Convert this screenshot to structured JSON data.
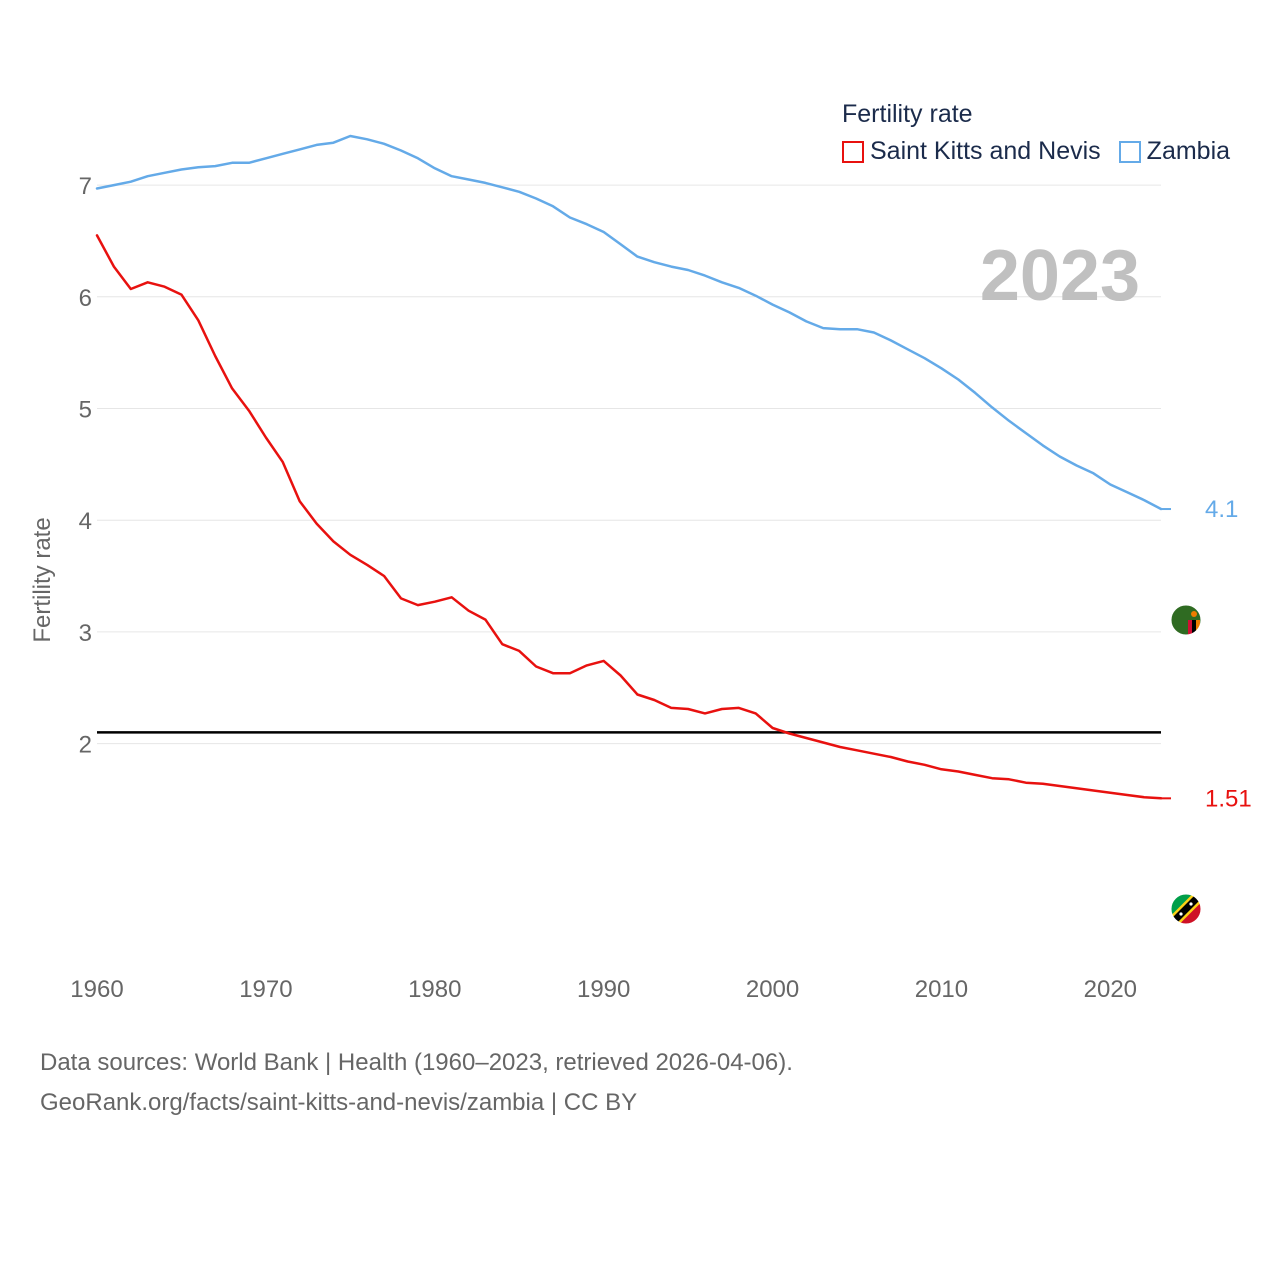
{
  "chart_data": {
    "type": "line",
    "title": "Fertility rate",
    "year_label": "2023",
    "xlabel": "",
    "ylabel": "Fertility rate",
    "xlim": [
      1960,
      2023
    ],
    "ylim": [
      1.0,
      8.0
    ],
    "x_ticks": [
      1960,
      1970,
      1980,
      1990,
      2000,
      2010,
      2020
    ],
    "y_ticks": [
      2,
      3,
      4,
      5,
      6,
      7
    ],
    "reference_line": {
      "y": 2.1,
      "color": "#000000"
    },
    "x": [
      1960,
      1961,
      1962,
      1963,
      1964,
      1965,
      1966,
      1967,
      1968,
      1969,
      1970,
      1971,
      1972,
      1973,
      1974,
      1975,
      1976,
      1977,
      1978,
      1979,
      1980,
      1981,
      1982,
      1983,
      1984,
      1985,
      1986,
      1987,
      1988,
      1989,
      1990,
      1991,
      1992,
      1993,
      1994,
      1995,
      1996,
      1997,
      1998,
      1999,
      2000,
      2001,
      2002,
      2003,
      2004,
      2005,
      2006,
      2007,
      2008,
      2009,
      2010,
      2011,
      2012,
      2013,
      2014,
      2015,
      2016,
      2017,
      2018,
      2019,
      2020,
      2021,
      2022,
      2023
    ],
    "series": [
      {
        "name": "Saint Kitts and Nevis",
        "color": "#e8110f",
        "end_label": "1.51",
        "flag_icon": "saint-kitts-and-nevis-flag",
        "values": [
          6.55,
          6.27,
          6.07,
          6.13,
          6.09,
          6.02,
          5.79,
          5.47,
          5.18,
          4.98,
          4.74,
          4.52,
          4.17,
          3.97,
          3.81,
          3.69,
          3.6,
          3.5,
          3.3,
          3.24,
          3.27,
          3.31,
          3.19,
          3.11,
          2.89,
          2.83,
          2.69,
          2.63,
          2.63,
          2.7,
          2.74,
          2.61,
          2.44,
          2.39,
          2.32,
          2.31,
          2.27,
          2.31,
          2.32,
          2.27,
          2.14,
          2.09,
          2.05,
          2.01,
          1.97,
          1.94,
          1.91,
          1.88,
          1.84,
          1.81,
          1.77,
          1.75,
          1.72,
          1.69,
          1.68,
          1.65,
          1.64,
          1.62,
          1.6,
          1.58,
          1.56,
          1.54,
          1.52,
          1.51
        ]
      },
      {
        "name": "Zambia",
        "color": "#64aae8",
        "end_label": "4.1",
        "flag_icon": "zambia-flag",
        "values": [
          6.97,
          7.0,
          7.03,
          7.08,
          7.11,
          7.14,
          7.16,
          7.17,
          7.2,
          7.2,
          7.24,
          7.28,
          7.32,
          7.36,
          7.38,
          7.44,
          7.41,
          7.37,
          7.31,
          7.24,
          7.15,
          7.08,
          7.05,
          7.02,
          6.98,
          6.94,
          6.88,
          6.81,
          6.71,
          6.65,
          6.58,
          6.47,
          6.36,
          6.31,
          6.27,
          6.24,
          6.19,
          6.13,
          6.08,
          6.01,
          5.93,
          5.86,
          5.78,
          5.72,
          5.71,
          5.71,
          5.68,
          5.61,
          5.53,
          5.45,
          5.36,
          5.26,
          5.14,
          5.01,
          4.89,
          4.78,
          4.67,
          4.57,
          4.49,
          4.42,
          4.32,
          4.25,
          4.18,
          4.1
        ]
      }
    ]
  },
  "legend": {
    "title": "Fertility rate",
    "items": [
      "Saint Kitts and Nevis",
      "Zambia"
    ]
  },
  "footer": {
    "line1": "Data sources: World Bank | Health (1960–2023, retrieved 2026-04-06).",
    "line2": "GeoRank.org/facts/saint-kitts-and-nevis/zambia | CC BY"
  }
}
